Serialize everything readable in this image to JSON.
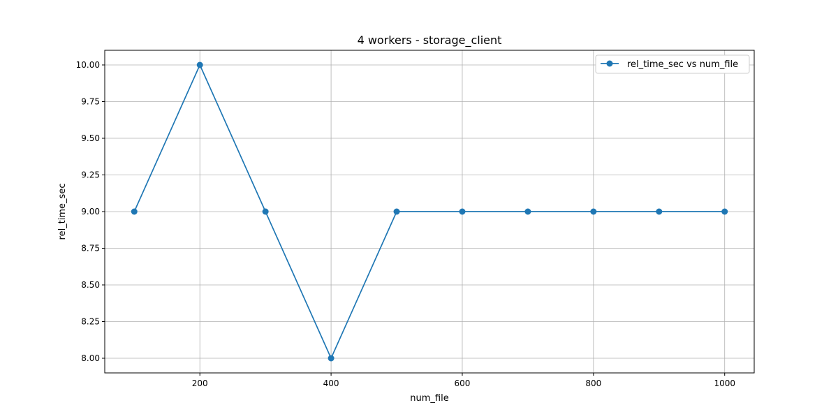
{
  "chart_data": {
    "type": "line",
    "title": "4 workers - storage_client",
    "xlabel": "num_file",
    "ylabel": "rel_time_sec",
    "xlim": [
      55,
      1045
    ],
    "ylim": [
      7.9,
      10.1
    ],
    "x_ticks": [
      200,
      400,
      600,
      800,
      1000
    ],
    "y_ticks": [
      8.0,
      8.25,
      8.5,
      8.75,
      9.0,
      9.25,
      9.5,
      9.75,
      10.0
    ],
    "grid": true,
    "legend_position": "top-right",
    "series": [
      {
        "name": "rel_time_sec vs num_file",
        "color": "#1f77b4",
        "marker": "circle",
        "x": [
          100,
          200,
          300,
          400,
          500,
          600,
          700,
          800,
          900,
          1000
        ],
        "y": [
          9,
          10,
          9,
          8,
          9,
          9,
          9,
          9,
          9,
          9
        ]
      }
    ]
  }
}
